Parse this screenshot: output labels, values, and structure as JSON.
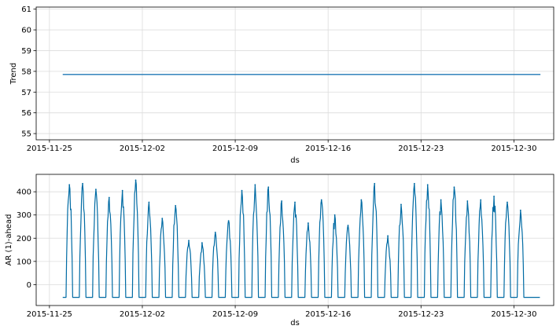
{
  "chart_data": [
    {
      "type": "line",
      "title": "",
      "xlabel": "ds",
      "ylabel": "Trend",
      "ylim": [
        54.7,
        61.1
      ],
      "yticks": [
        55,
        56,
        57,
        58,
        59,
        60,
        61
      ],
      "xlim": [
        "2015-11-24",
        "2016-01-02"
      ],
      "xticks": [
        "2015-11-25",
        "2015-12-02",
        "2015-12-09",
        "2015-12-16",
        "2015-12-23",
        "2015-12-30"
      ],
      "grid": true,
      "color": "#1f77b4",
      "series": [
        {
          "x": [
            "2015-11-26",
            "2016-01-01"
          ],
          "values": [
            57.85,
            57.85
          ]
        }
      ]
    },
    {
      "type": "line",
      "title": "",
      "xlabel": "ds",
      "ylabel": "AR (1)-ahead",
      "ylim": [
        -90,
        475
      ],
      "yticks": [
        0,
        100,
        200,
        300,
        400
      ],
      "xlim": [
        "2015-11-24",
        "2016-01-02"
      ],
      "xticks": [
        "2015-11-25",
        "2015-12-02",
        "2015-12-09",
        "2015-12-16",
        "2015-12-23",
        "2015-12-30"
      ],
      "grid": true,
      "color": "#006ba4",
      "baseline": -55,
      "series": [
        {
          "x": [
            "2015-11-26",
            "2015-11-27",
            "2015-11-28",
            "2015-11-29",
            "2015-11-30",
            "2015-12-01",
            "2015-12-02",
            "2015-12-03",
            "2015-12-04",
            "2015-12-05",
            "2015-12-06",
            "2015-12-07",
            "2015-12-08",
            "2015-12-09",
            "2015-12-10",
            "2015-12-11",
            "2015-12-12",
            "2015-12-13",
            "2015-12-14",
            "2015-12-15",
            "2015-12-16",
            "2015-12-17",
            "2015-12-18",
            "2015-12-19",
            "2015-12-20",
            "2015-12-21",
            "2015-12-22",
            "2015-12-23",
            "2015-12-24",
            "2015-12-25",
            "2015-12-26",
            "2015-12-27",
            "2015-12-28",
            "2015-12-29",
            "2015-12-30",
            "2015-12-31"
          ],
          "values": [
            430,
            435,
            410,
            375,
            405,
            450,
            355,
            285,
            340,
            190,
            180,
            225,
            275,
            405,
            430,
            420,
            360,
            355,
            265,
            365,
            300,
            255,
            365,
            435,
            210,
            345,
            435,
            430,
            365,
            420,
            360,
            365,
            380,
            355,
            320,
            0
          ]
        }
      ]
    }
  ]
}
